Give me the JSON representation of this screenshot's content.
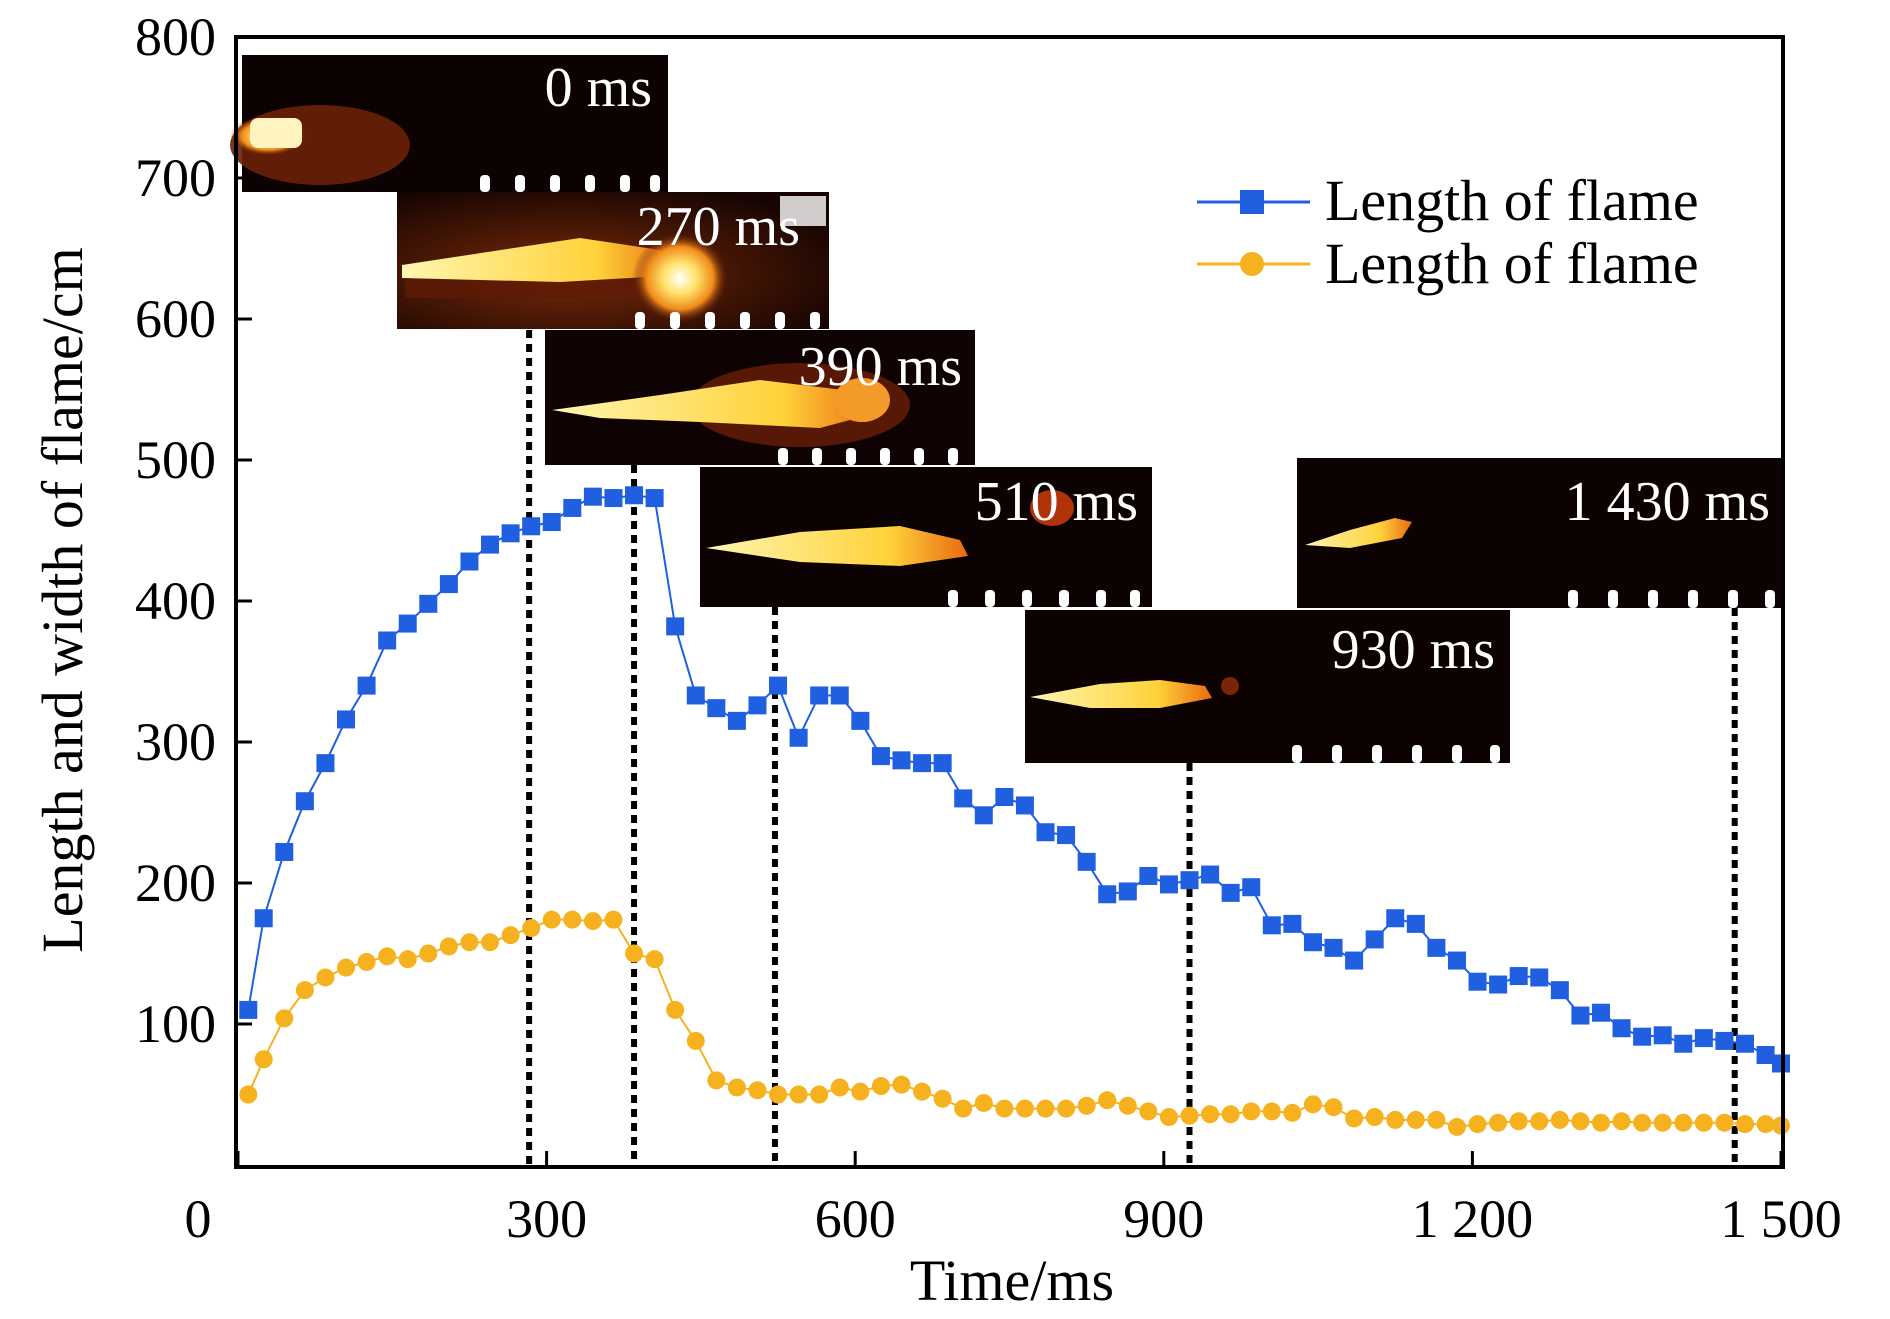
{
  "chart_data": {
    "type": "scatter",
    "xlabel": "Time/ms",
    "ylabel": "Length and width of flame/cm",
    "xlim": [
      0,
      1500
    ],
    "ylim": [
      0,
      800
    ],
    "x_ticks": [
      0,
      300,
      600,
      900,
      1200,
      1500
    ],
    "x_tick_labels": [
      "0",
      "300",
      "600",
      "900",
      "1 200",
      "1 500"
    ],
    "y_ticks": [
      100,
      200,
      300,
      400,
      500,
      600,
      700,
      800
    ],
    "y_tick_labels": [
      "100",
      "200",
      "300",
      "400",
      "500",
      "600",
      "700",
      "800"
    ],
    "grid": false,
    "legend_position": "top-right",
    "series": [
      {
        "name": "Length of flame",
        "color": "#1f5fe0",
        "marker": "square",
        "x": [
          10,
          25,
          45,
          65,
          85,
          105,
          125,
          145,
          165,
          185,
          205,
          225,
          245,
          265,
          285,
          305,
          325,
          345,
          365,
          385,
          405,
          425,
          445,
          465,
          485,
          505,
          525,
          545,
          565,
          585,
          605,
          625,
          645,
          665,
          685,
          705,
          725,
          745,
          765,
          785,
          805,
          825,
          845,
          865,
          885,
          905,
          925,
          945,
          965,
          985,
          1005,
          1025,
          1045,
          1065,
          1085,
          1105,
          1125,
          1145,
          1165,
          1185,
          1205,
          1225,
          1245,
          1265,
          1285,
          1305,
          1325,
          1345,
          1365,
          1385,
          1405,
          1425,
          1445,
          1465,
          1485,
          1500
        ],
        "y": [
          110,
          175,
          222,
          258,
          285,
          316,
          340,
          372,
          384,
          398,
          412,
          428,
          440,
          448,
          453,
          456,
          466,
          474,
          473,
          475,
          473,
          382,
          333,
          324,
          315,
          326,
          340,
          303,
          333,
          333,
          315,
          290,
          287,
          285,
          285,
          260,
          248,
          261,
          255,
          236,
          234,
          215,
          192,
          194,
          205,
          199,
          202,
          206,
          193,
          197,
          170,
          171,
          158,
          154,
          145,
          160,
          175,
          171,
          154,
          145,
          130,
          128,
          134,
          133,
          124,
          106,
          108,
          97,
          91,
          92,
          86,
          90,
          88,
          86,
          78,
          72
        ]
      },
      {
        "name": "Length of flame",
        "color": "#f5b21e",
        "marker": "circle",
        "x": [
          10,
          25,
          45,
          65,
          85,
          105,
          125,
          145,
          165,
          185,
          205,
          225,
          245,
          265,
          285,
          305,
          325,
          345,
          365,
          385,
          405,
          425,
          445,
          465,
          485,
          505,
          525,
          545,
          565,
          585,
          605,
          625,
          645,
          665,
          685,
          705,
          725,
          745,
          765,
          785,
          805,
          825,
          845,
          865,
          885,
          905,
          925,
          945,
          965,
          985,
          1005,
          1025,
          1045,
          1065,
          1085,
          1105,
          1125,
          1145,
          1165,
          1185,
          1205,
          1225,
          1245,
          1265,
          1285,
          1305,
          1325,
          1345,
          1365,
          1385,
          1405,
          1425,
          1445,
          1465,
          1485,
          1500
        ],
        "y": [
          50,
          75,
          104,
          124,
          133,
          140,
          144,
          148,
          146,
          150,
          155,
          158,
          158,
          163,
          168,
          174,
          174,
          173,
          174,
          150,
          146,
          110,
          88,
          60,
          55,
          53,
          50,
          50,
          50,
          55,
          52,
          56,
          57,
          52,
          47,
          40,
          44,
          40,
          40,
          40,
          40,
          42,
          46,
          42,
          38,
          34,
          35,
          36,
          36,
          38,
          38,
          37,
          43,
          41,
          33,
          34,
          32,
          32,
          32,
          27,
          29,
          30,
          31,
          31,
          32,
          31,
          30,
          31,
          30,
          30,
          30,
          30,
          30,
          29,
          29,
          28
        ]
      }
    ],
    "snapshots": [
      {
        "label": "0 ms",
        "time": 0
      },
      {
        "label": "270 ms",
        "time": 270
      },
      {
        "label": "390 ms",
        "time": 390
      },
      {
        "label": "510 ms",
        "time": 510
      },
      {
        "label": "930 ms",
        "time": 930
      },
      {
        "label": "1 430 ms",
        "time": 1430
      }
    ],
    "marker_lines_x": [
      283,
      385,
      522,
      925,
      1455
    ]
  }
}
